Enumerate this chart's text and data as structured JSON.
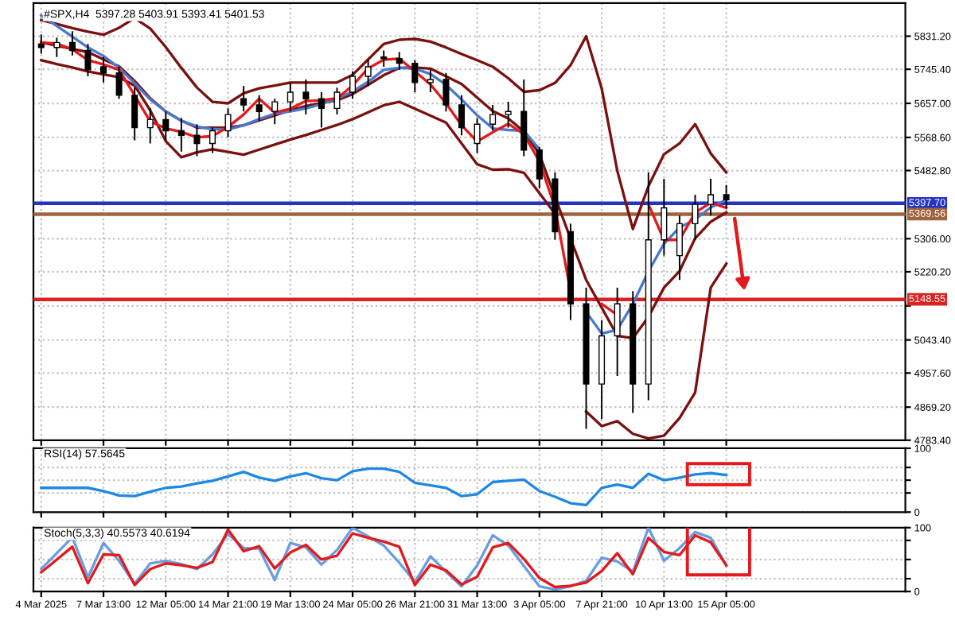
{
  "chart_data": [
    {
      "type": "candlestick",
      "title": "#SPX,H4  5397.28 5403.91 5393.41 5401.53",
      "categories": [
        null,
        null,
        null,
        null,
        null,
        null,
        null,
        null,
        null,
        null,
        null,
        null,
        null,
        null,
        null,
        null,
        null,
        null,
        null,
        null,
        null,
        null,
        null,
        null,
        null,
        null,
        null,
        null,
        null,
        null,
        null,
        null,
        null,
        null,
        null,
        null,
        null,
        null,
        null,
        null,
        null,
        null,
        null,
        null,
        null,
        null,
        null,
        null,
        null,
        null,
        null,
        null,
        null,
        null,
        null,
        null
      ],
      "ohlc": [
        [
          5811,
          5836,
          5786,
          5802
        ],
        [
          5802,
          5827,
          5777,
          5815
        ],
        [
          5815,
          5844,
          5781,
          5794
        ],
        [
          5794,
          5811,
          5727,
          5744
        ],
        [
          5752,
          5777,
          5711,
          5736
        ],
        [
          5736,
          5752,
          5669,
          5678
        ],
        [
          5678,
          5698,
          5561,
          5594
        ],
        [
          5594,
          5644,
          5553,
          5615
        ],
        [
          5615,
          5636,
          5561,
          5586
        ],
        [
          5586,
          5619,
          5532,
          5574
        ],
        [
          5574,
          5603,
          5520,
          5553
        ],
        [
          5553,
          5594,
          5528,
          5586
        ],
        [
          5586,
          5644,
          5569,
          5628
        ],
        [
          5669,
          5702,
          5636,
          5653
        ],
        [
          5653,
          5678,
          5611,
          5636
        ],
        [
          5636,
          5669,
          5603,
          5661
        ],
        [
          5661,
          5711,
          5636,
          5686
        ],
        [
          5686,
          5719,
          5628,
          5669
        ],
        [
          5669,
          5686,
          5594,
          5644
        ],
        [
          5644,
          5698,
          5628,
          5686
        ],
        [
          5686,
          5740,
          5669,
          5727
        ],
        [
          5727,
          5769,
          5702,
          5752
        ],
        [
          5777,
          5794,
          5752,
          5773
        ],
        [
          5773,
          5790,
          5744,
          5761
        ],
        [
          5761,
          5769,
          5686,
          5711
        ],
        [
          5711,
          5744,
          5686,
          5719
        ],
        [
          5719,
          5736,
          5636,
          5653
        ],
        [
          5653,
          5678,
          5574,
          5594
        ],
        [
          5553,
          5619,
          5528,
          5603
        ],
        [
          5603,
          5653,
          5586,
          5628
        ],
        [
          5628,
          5661,
          5594,
          5636
        ],
        [
          5636,
          5719,
          5520,
          5536
        ],
        [
          5536,
          5544,
          5436,
          5461
        ],
        [
          5461,
          5478,
          5303,
          5324
        ],
        [
          5324,
          5345,
          5095,
          5137
        ],
        [
          5137,
          5179,
          4813,
          4929
        ],
        [
          4929,
          5095,
          4838,
          5054
        ],
        [
          5054,
          5179,
          4950,
          5137
        ],
        [
          5137,
          5170,
          4854,
          4929
        ],
        [
          4929,
          5478,
          4887,
          5303
        ],
        [
          5303,
          5461,
          5262,
          5386
        ],
        [
          5262,
          5366,
          5199,
          5345
        ],
        [
          5345,
          5420,
          5303,
          5395
        ],
        [
          5395,
          5461,
          5366,
          5420
        ],
        [
          5420,
          5445,
          5386,
          5407
        ],
        null,
        null,
        null,
        null,
        null,
        null,
        null,
        null,
        null,
        null,
        null
      ],
      "series": [
        {
          "type": "line",
          "color": "#7b1010",
          "values": [
            5873,
            5863,
            5852,
            5843,
            5835,
            5853,
            5878,
            5851,
            5803,
            5749,
            5698,
            5661,
            5657,
            5683,
            5696,
            5703,
            5711,
            5711,
            5711,
            5711,
            5731,
            5771,
            5811,
            5822,
            5824,
            5817,
            5802,
            5785,
            5769,
            5752,
            5722,
            5687,
            5691,
            5710,
            5756,
            5831,
            5695,
            5482,
            5331,
            5442,
            5525,
            5553,
            5603,
            5527,
            5478,
            null,
            null,
            null,
            null,
            null,
            null,
            null,
            null,
            null,
            null,
            null
          ]
        },
        {
          "type": "line",
          "color": "#7b1010",
          "values": [
            5815,
            5807,
            5798,
            5790,
            5771,
            5753,
            5715,
            5670,
            5636,
            5612,
            5594,
            5594,
            5594,
            5600,
            5613,
            5626,
            5639,
            5650,
            5658,
            5665,
            5681,
            5705,
            5730,
            5749,
            5750,
            5747,
            5727,
            5707,
            5672,
            5637,
            5618,
            5584,
            5525,
            5414,
            5306,
            5199,
            5127,
            5054,
            5048,
            5103,
            5179,
            5222,
            5307,
            5350,
            5374,
            null,
            null,
            null,
            null,
            null,
            null,
            null,
            null,
            null,
            null,
            null
          ]
        },
        {
          "type": "line",
          "color": "#7b1010",
          "values": [
            5769,
            5759,
            5750,
            5740,
            5732,
            5725,
            5703,
            5639,
            5559,
            5517,
            5530,
            5538,
            5531,
            5524,
            5537,
            5550,
            5563,
            5575,
            5588,
            5601,
            5616,
            5634,
            5652,
            5661,
            5643,
            5625,
            5607,
            5553,
            5499,
            5485,
            5486,
            5477,
            5424,
            5371,
            null,
            4858,
            4820,
            4833,
            4800,
            4788,
            4795,
            4841,
            4907,
            5179,
            5241,
            null,
            null,
            null,
            null,
            null,
            null,
            null,
            null,
            null,
            null,
            null
          ]
        },
        {
          "type": "line",
          "color": "#4a78d0",
          "values": [
            5885,
            5858,
            5830,
            5802,
            5780,
            5749,
            5709,
            5667,
            5636,
            5612,
            5597,
            5590,
            5589,
            5600,
            5616,
            5630,
            5636,
            5644,
            5655,
            5669,
            5688,
            5713,
            5744,
            5749,
            5747,
            5733,
            5705,
            5667,
            5626,
            5592,
            5588,
            5586,
            5538,
            null,
            null,
            5116,
            5060,
            5070,
            5137,
            5221,
            5293,
            5335,
            5356,
            5387,
            5407,
            null,
            null,
            null,
            null,
            null,
            null,
            null,
            null,
            null,
            null,
            null
          ]
        },
        {
          "type": "line",
          "color": "#e3191c",
          "values": [
            5815,
            5812,
            5797,
            5769,
            5758,
            5744,
            5678,
            5610,
            5592,
            5583,
            5569,
            5572,
            5596,
            5628,
            5669,
            5633,
            5643,
            5663,
            5665,
            5670,
            5703,
            5748,
            5770,
            5773,
            5740,
            5706,
            5657,
            5600,
            5558,
            5582,
            5604,
            5577,
            5506,
            5387,
            5168,
            null,
            5137,
            5108,
            null,
            5395,
            5303,
            5303,
            5374,
            5399,
            5386,
            null,
            null,
            null,
            null,
            null,
            null,
            null,
            null,
            null,
            null,
            null
          ]
        }
      ],
      "ref_lines": [
        {
          "axis": "y",
          "value": 5397.7,
          "label": "5397.70",
          "color": "#2333c4"
        },
        {
          "axis": "y",
          "value": 5369.56,
          "label": "5369.56",
          "color": "#a0633c"
        },
        {
          "axis": "y",
          "value": 5148.55,
          "label": "5148.55",
          "color": "#d92323"
        }
      ],
      "ylim": [
        4783.4,
        5917
      ],
      "yticks": [
        {
          "value": 5831.2,
          "label": "5831.20"
        },
        {
          "value": 5745.4,
          "label": "5745.40"
        },
        {
          "value": 5657.0,
          "label": "5657.00"
        },
        {
          "value": 5568.6,
          "label": "5568.60"
        },
        {
          "value": 5482.8,
          "label": "5482.80"
        },
        {
          "value": 5306.0,
          "label": "5306.00"
        },
        {
          "value": 5220.2,
          "label": "5220.20"
        },
        {
          "value": 5131.8,
          "label": null
        },
        {
          "value": 5043.4,
          "label": "5043.40"
        },
        {
          "value": 4957.6,
          "label": "4957.60"
        },
        {
          "value": 4869.2,
          "label": "4869.20"
        },
        {
          "value": 4783.4,
          "label": "4783.40"
        }
      ],
      "grid": true,
      "tick_labels": "y"
    },
    {
      "type": "line",
      "title": "RSI(14) 57.5645",
      "categories": [
        null,
        null,
        null,
        null,
        null,
        null,
        null,
        null,
        null,
        null,
        null,
        null,
        null,
        null,
        null,
        null,
        null,
        null,
        null,
        null,
        null,
        null,
        null,
        null,
        null,
        null,
        null,
        null,
        null,
        null,
        null,
        null,
        null,
        null,
        null,
        null,
        null,
        null,
        null,
        null,
        null,
        null,
        null,
        null,
        null,
        null,
        null,
        null,
        null,
        null,
        null,
        null,
        null,
        null,
        null,
        null
      ],
      "series": [
        {
          "color": "#1e88e5",
          "values": [
            38,
            38,
            38,
            38,
            33,
            26,
            25,
            32,
            38,
            40,
            45,
            49,
            56,
            63,
            54,
            49,
            56,
            61,
            53,
            50,
            64,
            68,
            68,
            63,
            46,
            42,
            38,
            25,
            28,
            47,
            49,
            51,
            33,
            24,
            14,
            11,
            38,
            43,
            38,
            60,
            50,
            54,
            59,
            61,
            58,
            null,
            null,
            null,
            null,
            null,
            null,
            null,
            null,
            null,
            null,
            null
          ]
        }
      ],
      "ylim": [
        0,
        100
      ],
      "yticks": [
        0,
        {
          "value": 30,
          "label": null
        },
        {
          "value": 50,
          "label": null
        },
        {
          "value": 70,
          "label": null
        },
        100
      ],
      "grid": true,
      "tick_labels": "y"
    },
    {
      "type": "line",
      "title": "Stoch(5,3,3) 40.5573 40.6194",
      "categories": [
        "4 Mar 2025",
        null,
        null,
        null,
        "7 Mar 13:00",
        null,
        null,
        null,
        "12 Mar 05:00",
        null,
        null,
        null,
        "14 Mar 21:00",
        null,
        null,
        null,
        "19 Mar 13:00",
        null,
        null,
        null,
        "24 Mar 05:00",
        null,
        null,
        null,
        "26 Mar 21:00",
        null,
        null,
        null,
        "31 Mar 13:00",
        null,
        null,
        null,
        "3 Apr 05:00",
        null,
        null,
        null,
        "7 Apr 21:00",
        null,
        null,
        null,
        "10 Apr 13:00",
        null,
        null,
        null,
        "15 Apr 05:00",
        null,
        null,
        null,
        null,
        null,
        null,
        null,
        null,
        null,
        null,
        null
      ],
      "series": [
        {
          "color": "#6a9de0",
          "values": [
            35,
            60,
            85,
            22,
            76,
            48,
            12,
            44,
            48,
            43,
            35,
            58,
            90,
            68,
            67,
            18,
            76,
            69,
            42,
            65,
            100,
            86,
            72,
            45,
            15,
            55,
            31,
            8,
            41,
            88,
            72,
            40,
            8,
            3,
            8,
            17,
            53,
            47,
            31,
            100,
            48,
            68,
            93,
            84,
            41,
            null,
            null,
            null,
            null,
            null,
            null,
            null,
            null,
            null,
            null,
            null
          ]
        },
        {
          "color": "#e3191c",
          "values": [
            30,
            50,
            70,
            13,
            58,
            57,
            10,
            35,
            44,
            41,
            37,
            46,
            97,
            63,
            71,
            36,
            61,
            73,
            50,
            56,
            91,
            84,
            78,
            70,
            10,
            42,
            33,
            11,
            23,
            69,
            76,
            51,
            21,
            7,
            9,
            14,
            32,
            60,
            27,
            84,
            62,
            57,
            88,
            77,
            41,
            null,
            null,
            null,
            null,
            null,
            null,
            null,
            null,
            null,
            null,
            null
          ]
        }
      ],
      "ylim": [
        0,
        100
      ],
      "yticks": [
        0,
        {
          "value": 20,
          "label": null
        },
        {
          "value": 50,
          "label": null
        },
        {
          "value": 80,
          "label": null
        },
        100
      ],
      "grid": true
    }
  ]
}
